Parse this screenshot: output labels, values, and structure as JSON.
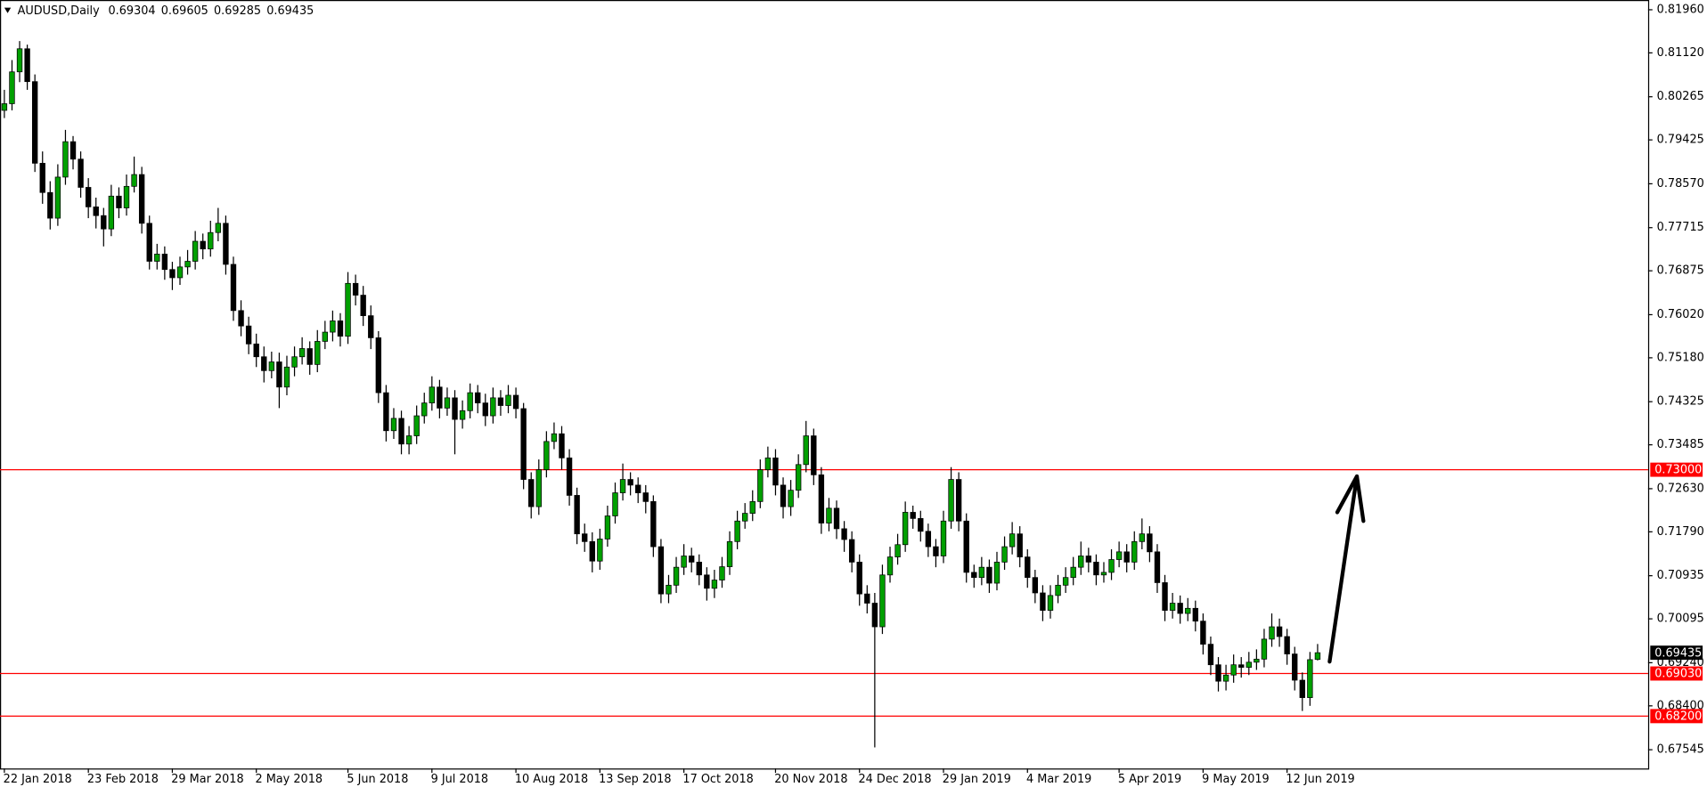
{
  "chart_data": {
    "type": "candlestick",
    "title": "AUDUSD,Daily",
    "up_color": "#00a000",
    "down_color": "#000000",
    "level_color": "#ff0000",
    "categories": [
      "22 Jan 2018",
      null,
      null,
      null,
      null,
      null,
      null,
      null,
      null,
      null,
      null,
      "23 Feb 2018",
      null,
      null,
      null,
      null,
      null,
      null,
      null,
      null,
      null,
      null,
      "29 Mar 2018",
      null,
      null,
      null,
      null,
      null,
      null,
      null,
      null,
      null,
      null,
      "2 May 2018",
      null,
      null,
      null,
      null,
      null,
      null,
      null,
      null,
      null,
      null,
      null,
      "5 Jun 2018",
      null,
      null,
      null,
      null,
      null,
      null,
      null,
      null,
      null,
      null,
      "9 Jul 2018",
      null,
      null,
      null,
      null,
      null,
      null,
      null,
      null,
      null,
      null,
      "10 Aug 2018",
      null,
      null,
      null,
      null,
      null,
      null,
      null,
      null,
      null,
      null,
      "13 Sep 2018",
      null,
      null,
      null,
      null,
      null,
      null,
      null,
      null,
      null,
      null,
      "17 Oct 2018",
      null,
      null,
      null,
      null,
      null,
      null,
      null,
      null,
      null,
      null,
      null,
      "20 Nov 2018",
      null,
      null,
      null,
      null,
      null,
      null,
      null,
      null,
      null,
      null,
      "24 Dec 2018",
      null,
      null,
      null,
      null,
      null,
      null,
      null,
      null,
      null,
      null,
      "29 Jan 2019",
      null,
      null,
      null,
      null,
      null,
      null,
      null,
      null,
      null,
      null,
      "4 Mar 2019",
      null,
      null,
      null,
      null,
      null,
      null,
      null,
      null,
      null,
      null,
      null,
      "5 Apr 2019",
      null,
      null,
      null,
      null,
      null,
      null,
      null,
      null,
      null,
      null,
      "9 May 2019",
      null,
      null,
      null,
      null,
      null,
      null,
      null,
      null,
      null,
      null,
      "12 Jun 2019",
      null,
      null,
      null,
      null
    ],
    "candles": [
      [
        0.8,
        0.804,
        0.7985,
        0.8013
      ],
      [
        0.8013,
        0.8098,
        0.8,
        0.8075
      ],
      [
        0.8075,
        0.8135,
        0.8055,
        0.812
      ],
      [
        0.812,
        0.8128,
        0.804,
        0.8056
      ],
      [
        0.8056,
        0.807,
        0.788,
        0.7897
      ],
      [
        0.7897,
        0.792,
        0.7818,
        0.784
      ],
      [
        0.784,
        0.7862,
        0.7768,
        0.779
      ],
      [
        0.779,
        0.7895,
        0.7775,
        0.787
      ],
      [
        0.787,
        0.7962,
        0.7855,
        0.7939
      ],
      [
        0.7939,
        0.795,
        0.7885,
        0.7905
      ],
      [
        0.7905,
        0.792,
        0.783,
        0.785
      ],
      [
        0.785,
        0.7868,
        0.779,
        0.7812
      ],
      [
        0.7812,
        0.783,
        0.777,
        0.7795
      ],
      [
        0.7795,
        0.781,
        0.7735,
        0.7769
      ],
      [
        0.7769,
        0.7855,
        0.7755,
        0.7833
      ],
      [
        0.7833,
        0.785,
        0.779,
        0.781
      ],
      [
        0.781,
        0.7875,
        0.7795,
        0.7852
      ],
      [
        0.7852,
        0.791,
        0.784,
        0.7875
      ],
      [
        0.7875,
        0.789,
        0.776,
        0.778
      ],
      [
        0.778,
        0.7795,
        0.769,
        0.7706
      ],
      [
        0.7706,
        0.774,
        0.769,
        0.772
      ],
      [
        0.772,
        0.7735,
        0.767,
        0.769
      ],
      [
        0.769,
        0.7705,
        0.765,
        0.7674
      ],
      [
        0.7674,
        0.7715,
        0.766,
        0.7695
      ],
      [
        0.7695,
        0.7728,
        0.768,
        0.7706
      ],
      [
        0.7706,
        0.7765,
        0.769,
        0.7745
      ],
      [
        0.7745,
        0.776,
        0.771,
        0.773
      ],
      [
        0.773,
        0.7785,
        0.7715,
        0.7762
      ],
      [
        0.7762,
        0.781,
        0.7745,
        0.778
      ],
      [
        0.778,
        0.7795,
        0.768,
        0.77
      ],
      [
        0.77,
        0.7715,
        0.759,
        0.761
      ],
      [
        0.761,
        0.763,
        0.756,
        0.758
      ],
      [
        0.758,
        0.7598,
        0.7525,
        0.7545
      ],
      [
        0.7545,
        0.7565,
        0.75,
        0.752
      ],
      [
        0.752,
        0.754,
        0.747,
        0.7493
      ],
      [
        0.7493,
        0.753,
        0.7478,
        0.751
      ],
      [
        0.751,
        0.7528,
        0.742,
        0.7461
      ],
      [
        0.7461,
        0.7522,
        0.7445,
        0.75
      ],
      [
        0.75,
        0.754,
        0.7482,
        0.752
      ],
      [
        0.752,
        0.7558,
        0.7505,
        0.7536
      ],
      [
        0.7536,
        0.755,
        0.7485,
        0.7505
      ],
      [
        0.7505,
        0.7572,
        0.749,
        0.755
      ],
      [
        0.755,
        0.759,
        0.7535,
        0.7568
      ],
      [
        0.7568,
        0.761,
        0.755,
        0.759
      ],
      [
        0.759,
        0.7605,
        0.754,
        0.756
      ],
      [
        0.756,
        0.7685,
        0.7545,
        0.7663
      ],
      [
        0.7663,
        0.768,
        0.762,
        0.764
      ],
      [
        0.764,
        0.7658,
        0.758,
        0.76
      ],
      [
        0.76,
        0.762,
        0.7535,
        0.7557
      ],
      [
        0.7557,
        0.757,
        0.743,
        0.745
      ],
      [
        0.745,
        0.7465,
        0.7355,
        0.7376
      ],
      [
        0.7376,
        0.742,
        0.736,
        0.74
      ],
      [
        0.74,
        0.7415,
        0.733,
        0.735
      ],
      [
        0.735,
        0.7385,
        0.733,
        0.7366
      ],
      [
        0.7366,
        0.7425,
        0.735,
        0.7405
      ],
      [
        0.7405,
        0.745,
        0.739,
        0.743
      ],
      [
        0.743,
        0.7482,
        0.7415,
        0.7461
      ],
      [
        0.7461,
        0.7475,
        0.74,
        0.742
      ],
      [
        0.742,
        0.746,
        0.7405,
        0.744
      ],
      [
        0.744,
        0.7455,
        0.733,
        0.7398
      ],
      [
        0.7398,
        0.7435,
        0.738,
        0.7415
      ],
      [
        0.7415,
        0.7468,
        0.74,
        0.745
      ],
      [
        0.745,
        0.7465,
        0.741,
        0.743
      ],
      [
        0.743,
        0.7448,
        0.7385,
        0.7405
      ],
      [
        0.7405,
        0.746,
        0.739,
        0.744
      ],
      [
        0.744,
        0.7455,
        0.7405,
        0.7425
      ],
      [
        0.7425,
        0.7465,
        0.741,
        0.7445
      ],
      [
        0.7445,
        0.746,
        0.74,
        0.7419
      ],
      [
        0.7419,
        0.743,
        0.7262,
        0.7281
      ],
      [
        0.7281,
        0.7295,
        0.7205,
        0.7228
      ],
      [
        0.7228,
        0.732,
        0.7212,
        0.73
      ],
      [
        0.73,
        0.7375,
        0.7285,
        0.7355
      ],
      [
        0.7355,
        0.7392,
        0.734,
        0.737
      ],
      [
        0.737,
        0.7385,
        0.73,
        0.7323
      ],
      [
        0.7323,
        0.734,
        0.723,
        0.725
      ],
      [
        0.725,
        0.7265,
        0.7155,
        0.7175
      ],
      [
        0.7175,
        0.7195,
        0.714,
        0.716
      ],
      [
        0.716,
        0.7178,
        0.71,
        0.7122
      ],
      [
        0.7122,
        0.7185,
        0.7105,
        0.7165
      ],
      [
        0.7165,
        0.723,
        0.715,
        0.721
      ],
      [
        0.721,
        0.7275,
        0.7195,
        0.7255
      ],
      [
        0.7255,
        0.7312,
        0.724,
        0.7281
      ],
      [
        0.7281,
        0.7295,
        0.725,
        0.727
      ],
      [
        0.727,
        0.7285,
        0.7235,
        0.7255
      ],
      [
        0.7255,
        0.727,
        0.7215,
        0.7238
      ],
      [
        0.7238,
        0.725,
        0.713,
        0.715
      ],
      [
        0.715,
        0.7165,
        0.704,
        0.7058
      ],
      [
        0.7058,
        0.7095,
        0.704,
        0.7075
      ],
      [
        0.7075,
        0.713,
        0.706,
        0.711
      ],
      [
        0.711,
        0.7155,
        0.7095,
        0.7132
      ],
      [
        0.7132,
        0.7148,
        0.71,
        0.712
      ],
      [
        0.712,
        0.7135,
        0.7075,
        0.7095
      ],
      [
        0.7095,
        0.711,
        0.7045,
        0.7069
      ],
      [
        0.7069,
        0.7105,
        0.705,
        0.7085
      ],
      [
        0.7085,
        0.713,
        0.707,
        0.7111
      ],
      [
        0.7111,
        0.718,
        0.7095,
        0.716
      ],
      [
        0.716,
        0.722,
        0.7145,
        0.72
      ],
      [
        0.72,
        0.7235,
        0.7185,
        0.7215
      ],
      [
        0.7215,
        0.726,
        0.72,
        0.7238
      ],
      [
        0.7238,
        0.732,
        0.7225,
        0.73
      ],
      [
        0.73,
        0.7345,
        0.7285,
        0.7323
      ],
      [
        0.7323,
        0.734,
        0.725,
        0.727
      ],
      [
        0.727,
        0.7285,
        0.7205,
        0.7228
      ],
      [
        0.7228,
        0.728,
        0.721,
        0.726
      ],
      [
        0.726,
        0.733,
        0.7245,
        0.731
      ],
      [
        0.731,
        0.7395,
        0.7295,
        0.7366
      ],
      [
        0.7366,
        0.738,
        0.727,
        0.729
      ],
      [
        0.729,
        0.7305,
        0.7175,
        0.7196
      ],
      [
        0.7196,
        0.7245,
        0.718,
        0.7225
      ],
      [
        0.7225,
        0.724,
        0.7165,
        0.7185
      ],
      [
        0.7185,
        0.72,
        0.714,
        0.7164
      ],
      [
        0.7164,
        0.718,
        0.71,
        0.712
      ],
      [
        0.712,
        0.7135,
        0.7035,
        0.7058
      ],
      [
        0.7058,
        0.7075,
        0.702,
        0.704
      ],
      [
        0.704,
        0.706,
        0.6759,
        0.6994
      ],
      [
        0.6994,
        0.7115,
        0.698,
        0.7095
      ],
      [
        0.7095,
        0.715,
        0.708,
        0.713
      ],
      [
        0.713,
        0.7175,
        0.7115,
        0.7154
      ],
      [
        0.7154,
        0.7238,
        0.714,
        0.7217
      ],
      [
        0.7217,
        0.723,
        0.7185,
        0.7205
      ],
      [
        0.7205,
        0.722,
        0.716,
        0.718
      ],
      [
        0.718,
        0.7195,
        0.713,
        0.715
      ],
      [
        0.715,
        0.7165,
        0.711,
        0.7132
      ],
      [
        0.7132,
        0.722,
        0.7118,
        0.72
      ],
      [
        0.72,
        0.7305,
        0.7185,
        0.7281
      ],
      [
        0.7281,
        0.7295,
        0.718,
        0.72
      ],
      [
        0.72,
        0.7215,
        0.708,
        0.71
      ],
      [
        0.71,
        0.7115,
        0.707,
        0.709
      ],
      [
        0.709,
        0.713,
        0.7075,
        0.711
      ],
      [
        0.711,
        0.7125,
        0.706,
        0.7079
      ],
      [
        0.7079,
        0.714,
        0.7065,
        0.712
      ],
      [
        0.712,
        0.717,
        0.7105,
        0.715
      ],
      [
        0.715,
        0.7198,
        0.7135,
        0.7175
      ],
      [
        0.7175,
        0.719,
        0.711,
        0.713
      ],
      [
        0.713,
        0.7145,
        0.707,
        0.709
      ],
      [
        0.709,
        0.7105,
        0.704,
        0.706
      ],
      [
        0.706,
        0.7075,
        0.7005,
        0.7026
      ],
      [
        0.7026,
        0.7075,
        0.701,
        0.7055
      ],
      [
        0.7055,
        0.7095,
        0.704,
        0.7075
      ],
      [
        0.7075,
        0.711,
        0.706,
        0.709
      ],
      [
        0.709,
        0.713,
        0.7075,
        0.711
      ],
      [
        0.711,
        0.716,
        0.7095,
        0.7132
      ],
      [
        0.7132,
        0.7148,
        0.71,
        0.712
      ],
      [
        0.712,
        0.7135,
        0.7075,
        0.7095
      ],
      [
        0.7095,
        0.712,
        0.708,
        0.71
      ],
      [
        0.71,
        0.7145,
        0.7085,
        0.7125
      ],
      [
        0.7125,
        0.716,
        0.711,
        0.714
      ],
      [
        0.714,
        0.7155,
        0.71,
        0.712
      ],
      [
        0.712,
        0.718,
        0.7105,
        0.716
      ],
      [
        0.716,
        0.7205,
        0.7145,
        0.7175
      ],
      [
        0.7175,
        0.719,
        0.712,
        0.714
      ],
      [
        0.714,
        0.7155,
        0.706,
        0.708
      ],
      [
        0.708,
        0.7095,
        0.7005,
        0.7026
      ],
      [
        0.7026,
        0.706,
        0.701,
        0.704
      ],
      [
        0.704,
        0.7055,
        0.7,
        0.702
      ],
      [
        0.702,
        0.705,
        0.7005,
        0.703
      ],
      [
        0.703,
        0.7045,
        0.6985,
        0.7005
      ],
      [
        0.7005,
        0.702,
        0.694,
        0.696
      ],
      [
        0.696,
        0.6975,
        0.69,
        0.692
      ],
      [
        0.692,
        0.6935,
        0.6868,
        0.6888
      ],
      [
        0.6888,
        0.692,
        0.687,
        0.69
      ],
      [
        0.69,
        0.694,
        0.6885,
        0.692
      ],
      [
        0.692,
        0.6935,
        0.6895,
        0.6915
      ],
      [
        0.6915,
        0.6945,
        0.69,
        0.6925
      ],
      [
        0.6925,
        0.695,
        0.691,
        0.6931
      ],
      [
        0.6931,
        0.699,
        0.6915,
        0.697
      ],
      [
        0.697,
        0.702,
        0.6955,
        0.6994
      ],
      [
        0.6994,
        0.701,
        0.6955,
        0.6975
      ],
      [
        0.6975,
        0.699,
        0.692,
        0.6941
      ],
      [
        0.6941,
        0.6955,
        0.687,
        0.689
      ],
      [
        0.689,
        0.6905,
        0.683,
        0.6856
      ],
      [
        0.6856,
        0.6945,
        0.684,
        0.693
      ],
      [
        0.69304,
        0.69605,
        0.69285,
        0.69435
      ]
    ],
    "ylim": [
      0.6718,
      0.8215
    ],
    "yticks": [
      {
        "value": 0.8196,
        "label": "0.81960"
      },
      {
        "value": 0.8112,
        "label": "0.81120"
      },
      0.80265,
      0.79425,
      {
        "value": 0.7857,
        "label": "0.78570"
      },
      0.77715,
      0.76875,
      {
        "value": 0.7602,
        "label": "0.76020"
      },
      {
        "value": 0.7518,
        "label": "0.75180"
      },
      0.74325,
      0.73485,
      {
        "value": 0.7263,
        "label": "0.72630"
      },
      {
        "value": 0.7179,
        "label": "0.71790"
      },
      0.70935,
      0.70095,
      {
        "value": 0.6924,
        "label": "0.69240"
      },
      {
        "value": 0.684,
        "label": "0.68400"
      },
      0.67545
    ],
    "levels": [
      {
        "value": 0.73,
        "label": "0.73000"
      },
      {
        "value": 0.6903,
        "label": "0.69030"
      },
      {
        "value": 0.682,
        "label": "0.68200"
      }
    ]
  }
}
